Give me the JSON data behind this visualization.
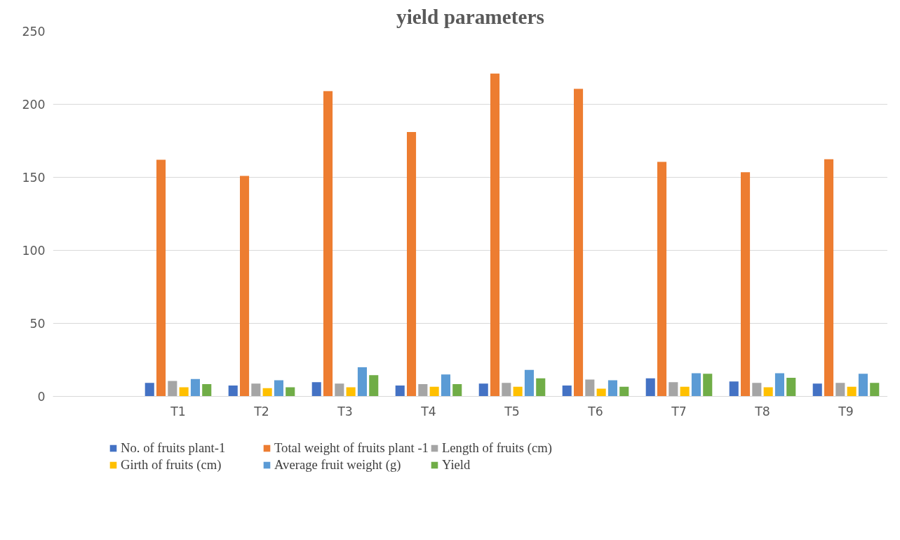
{
  "chart_data": {
    "type": "bar",
    "title": "yield parameters",
    "categories": [
      null,
      "T1",
      "T2",
      "T3",
      "T4",
      "T5",
      "T6",
      "T7",
      "T8",
      "T9"
    ],
    "series": [
      {
        "name": "No. of fruits plant-1",
        "color": "#4472c4",
        "values": [
          null,
          9.3,
          7.5,
          9.7,
          7.5,
          8.8,
          7.5,
          12.4,
          10.2,
          8.8
        ]
      },
      {
        "name": "Total weight of fruits plant -1",
        "color": "#ed7d31",
        "values": [
          null,
          162,
          151,
          209,
          181,
          221,
          210.6,
          160.6,
          153.5,
          162.4
        ]
      },
      {
        "name": "Length of fruits (cm)",
        "color": "#a5a5a5",
        "values": [
          null,
          10.6,
          8.8,
          8.8,
          8.4,
          9.3,
          11.5,
          9.7,
          9.3,
          9.3
        ]
      },
      {
        "name": "Girth of fruits (cm)",
        "color": "#ffc000",
        "values": [
          null,
          6.2,
          5.7,
          6.2,
          6.6,
          6.6,
          5.3,
          6.6,
          6.2,
          6.6
        ]
      },
      {
        "name": "Average fruit weight (g)",
        "color": "#5b9bd5",
        "values": [
          null,
          11.9,
          11,
          19.9,
          15,
          18.1,
          11,
          15.9,
          15.9,
          15.5
        ]
      },
      {
        "name": "Yield",
        "color": "#70ad47",
        "values": [
          null,
          8.4,
          6.2,
          14.6,
          8.4,
          12.4,
          6.6,
          15.5,
          12.8,
          9.3
        ]
      }
    ],
    "ylim": [
      0,
      250
    ],
    "yticks": [
      0,
      50,
      100,
      150,
      200,
      250
    ],
    "grid": "y",
    "legend": "bottom"
  }
}
